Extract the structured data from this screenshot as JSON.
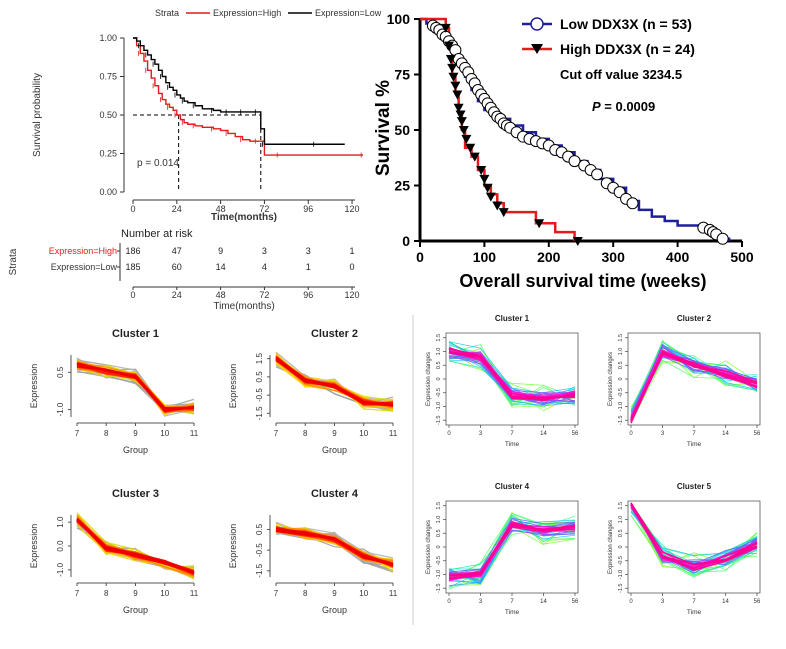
{
  "chart_data": [
    {
      "type": "line",
      "panel": "km-top-left",
      "legend_title": "Strata",
      "legend": [
        "Expression=High",
        "Expression=Low"
      ],
      "colors": {
        "high": "#e41a1c",
        "low": "#000000"
      },
      "ylabel": "Survival probability",
      "xlabel": "Time(months)",
      "xticks": [
        "0",
        "24",
        "48",
        "72",
        "96",
        "120"
      ],
      "yticks": [
        "0.00",
        "0.25",
        "0.50",
        "0.75",
        "1.00"
      ],
      "xlim": [
        0,
        126
      ],
      "ylim": [
        0,
        1
      ],
      "pvalue": "p = 0.014",
      "median_high": 25,
      "median_low": 70,
      "series": [
        {
          "name": "Expression=High",
          "color": "#e41a1c",
          "x": [
            0,
            2,
            4,
            6,
            8,
            10,
            12,
            14,
            16,
            18,
            20,
            22,
            24,
            26,
            28,
            30,
            34,
            38,
            44,
            48,
            52,
            56,
            60,
            64,
            68,
            72,
            80,
            100,
            126
          ],
          "y": [
            1.0,
            0.95,
            0.9,
            0.85,
            0.79,
            0.74,
            0.69,
            0.64,
            0.6,
            0.57,
            0.55,
            0.53,
            0.5,
            0.47,
            0.45,
            0.44,
            0.43,
            0.42,
            0.41,
            0.4,
            0.38,
            0.36,
            0.34,
            0.33,
            0.33,
            0.24,
            0.24,
            0.24,
            0.24
          ]
        },
        {
          "name": "Expression=Low",
          "color": "#000000",
          "x": [
            0,
            2,
            4,
            6,
            8,
            10,
            12,
            14,
            16,
            18,
            20,
            22,
            24,
            26,
            28,
            30,
            34,
            38,
            44,
            48,
            52,
            56,
            60,
            64,
            68,
            70,
            72,
            80,
            100,
            116
          ],
          "y": [
            1.0,
            0.98,
            0.95,
            0.92,
            0.89,
            0.86,
            0.83,
            0.79,
            0.75,
            0.71,
            0.68,
            0.66,
            0.63,
            0.61,
            0.59,
            0.58,
            0.56,
            0.54,
            0.53,
            0.52,
            0.52,
            0.52,
            0.52,
            0.52,
            0.52,
            0.41,
            0.31,
            0.31,
            0.31,
            0.31
          ]
        }
      ],
      "risk_table": {
        "title": "Number at risk",
        "axis_label": "Strata",
        "xlabel": "Time(months)",
        "rows": [
          {
            "label": "Expression=High",
            "values": [
              "186",
              "47",
              "9",
              "3",
              "3",
              "1"
            ]
          },
          {
            "label": "Expression=Low",
            "values": [
              "185",
              "60",
              "14",
              "4",
              "1",
              "0"
            ]
          }
        ]
      }
    },
    {
      "type": "line",
      "panel": "km-top-right",
      "ylabel": "Survival %",
      "xlabel": "Overall survival time (weeks)",
      "xticks": [
        "0",
        "100",
        "200",
        "300",
        "400",
        "500"
      ],
      "yticks": [
        "0",
        "25",
        "50",
        "75",
        "100"
      ],
      "xlim": [
        0,
        500
      ],
      "ylim": [
        0,
        100
      ],
      "legend": [
        "Low  DDX3X (n = 53)",
        "High  DDX3X (n = 24)"
      ],
      "annotation_cutoff": "Cut off value 3234.5",
      "pvalue_label": "P",
      "pvalue_value": " = 0.0009",
      "series": [
        {
          "name": "Low  DDX3X (n = 53)",
          "color": "#1f1f9e",
          "x": [
            0,
            10,
            20,
            30,
            40,
            50,
            60,
            70,
            80,
            90,
            100,
            120,
            140,
            160,
            180,
            200,
            220,
            240,
            260,
            280,
            300,
            320,
            340,
            360,
            380,
            400,
            420,
            440,
            460,
            470,
            480
          ],
          "y": [
            100,
            98,
            96,
            94,
            90,
            86,
            80,
            74,
            68,
            63,
            59,
            55,
            52,
            49,
            46,
            43,
            40,
            36,
            32,
            28,
            24,
            18,
            14,
            11,
            9,
            7,
            7,
            5,
            3,
            1,
            0
          ],
          "markers_x": [
            20,
            25,
            30,
            35,
            40,
            45,
            50,
            55,
            60,
            65,
            70,
            75,
            80,
            85,
            90,
            95,
            100,
            105,
            110,
            115,
            120,
            125,
            130,
            135,
            140,
            150,
            160,
            170,
            180,
            190,
            200,
            210,
            220,
            230,
            240,
            255,
            265,
            275,
            290,
            300,
            310,
            320,
            330,
            440,
            450,
            455,
            460,
            470
          ],
          "markers_y": [
            97,
            96,
            95,
            93,
            92,
            90,
            88,
            86,
            82,
            80,
            78,
            76,
            73,
            71,
            68,
            66,
            64,
            62,
            60,
            58,
            56,
            55,
            53,
            52,
            51,
            49,
            47,
            46,
            45,
            44,
            43,
            41,
            40,
            38,
            36,
            34,
            32,
            30,
            26,
            24,
            22,
            19,
            17,
            6,
            5,
            4,
            3,
            1
          ]
        },
        {
          "name": "High  DDX3X (n = 24)",
          "color": "#e41a1c",
          "x": [
            0,
            40,
            45,
            50,
            55,
            60,
            65,
            70,
            80,
            90,
            100,
            110,
            120,
            130,
            180,
            210,
            240
          ],
          "y": [
            100,
            96,
            88,
            75,
            67,
            58,
            50,
            42,
            38,
            32,
            25,
            21,
            17,
            13,
            8,
            4,
            0
          ],
          "markers_x": [
            40,
            45,
            48,
            50,
            52,
            55,
            58,
            60,
            63,
            65,
            68,
            72,
            78,
            85,
            95,
            100,
            105,
            110,
            120,
            130,
            185,
            245
          ],
          "markers_y": [
            96,
            88,
            82,
            78,
            74,
            70,
            66,
            60,
            57,
            54,
            50,
            46,
            42,
            38,
            32,
            28,
            24,
            20,
            16,
            13,
            8,
            0
          ]
        }
      ]
    },
    {
      "type": "line",
      "panel": "clusters-left",
      "ylabel": "Expression",
      "xlabel": "Group",
      "categories": [
        "7",
        "8",
        "9",
        "10",
        "11"
      ],
      "clusters": [
        {
          "title": "Cluster 1",
          "yticks": [
            "0.5",
            "-1.0"
          ],
          "ytick_values": [
            0.5,
            -1.0
          ],
          "ylim": [
            -1.3,
            1.2
          ],
          "center": [
            0.8,
            0.55,
            0.35,
            -1.0,
            -0.9
          ]
        },
        {
          "title": "Cluster 2",
          "yticks": [
            "1.5",
            "0.5",
            "-0.5",
            "-1.5"
          ],
          "ytick_values": [
            1.5,
            0.5,
            -0.5,
            -1.5
          ],
          "ylim": [
            -1.7,
            1.7
          ],
          "center": [
            1.5,
            0.3,
            0.0,
            -0.9,
            -1.0
          ]
        },
        {
          "title": "Cluster 3",
          "yticks": [
            "1.0",
            "0.0",
            "-1.0"
          ],
          "ytick_values": [
            1.0,
            0.0,
            -1.0
          ],
          "ylim": [
            -1.3,
            1.3
          ],
          "center": [
            1.1,
            -0.1,
            -0.4,
            -0.7,
            -1.1
          ]
        },
        {
          "title": "Cluster 4",
          "yticks": [
            "0.5",
            "-0.5",
            "-1.5"
          ],
          "ytick_values": [
            0.5,
            -0.5,
            -1.5
          ],
          "ylim": [
            -1.8,
            1.2
          ],
          "center": [
            0.5,
            0.3,
            0.0,
            -0.8,
            -1.2
          ]
        }
      ]
    },
    {
      "type": "line",
      "panel": "clusters-right",
      "ylabel": "Expression changes",
      "xlabel": "Time",
      "categories": [
        "0",
        "3",
        "7",
        "14",
        "56"
      ],
      "yticks": [
        "1.5",
        "1.0",
        "0.5",
        "0",
        "-0.5",
        "-1.0",
        "-1.5"
      ],
      "ytick_values": [
        1.5,
        1.0,
        0.5,
        0,
        -0.5,
        -1.0,
        -1.5
      ],
      "ylim": [
        -1.6,
        1.6
      ],
      "clusters": [
        {
          "title": "Cluster 1",
          "center": [
            1.0,
            0.8,
            -0.6,
            -0.7,
            -0.6
          ]
        },
        {
          "title": "Cluster 2",
          "center": [
            -1.5,
            1.0,
            0.5,
            0.2,
            -0.2
          ]
        },
        {
          "title": "Cluster 4",
          "center": [
            -1.1,
            -1.0,
            0.8,
            0.6,
            0.7
          ]
        },
        {
          "title": "Cluster 5",
          "center": [
            1.6,
            -0.3,
            -0.7,
            -0.4,
            0.1
          ]
        }
      ]
    }
  ]
}
